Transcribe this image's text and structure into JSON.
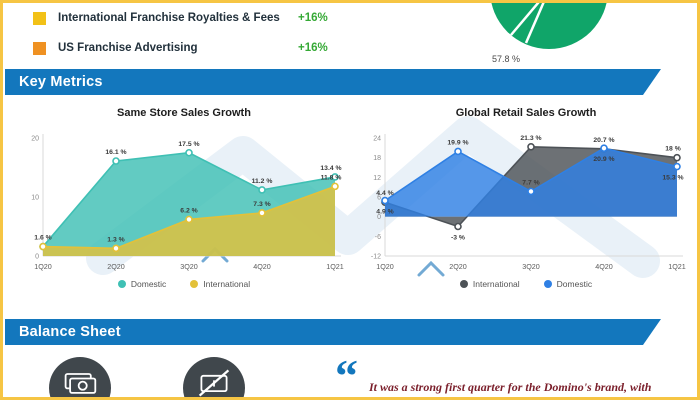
{
  "colors": {
    "accent_blue": "#1377bd",
    "positive_green": "#35a935",
    "donut_green": "#10a569",
    "quote_maroon": "#7b1f2b",
    "border_yellow": "#f6c544",
    "icon_circle_gray": "#40474c"
  },
  "revenue_legend": {
    "items": [
      {
        "label": "International Franchise Royalties & Fees",
        "change": "+16%",
        "color": "#f2c117"
      },
      {
        "label": "US Franchise Advertising",
        "change": "+16%",
        "color": "#ef9122"
      }
    ]
  },
  "donut": {
    "visible_label": "57.8 %"
  },
  "section_headers": {
    "key_metrics": "Key Metrics",
    "balance_sheet": "Balance Sheet"
  },
  "chart_data": [
    {
      "type": "area",
      "title": "Same Store Sales Growth",
      "categories": [
        "1Q20",
        "2Q20",
        "3Q20",
        "4Q20",
        "1Q21"
      ],
      "ylim": [
        0,
        20
      ],
      "yticks": [
        0,
        10,
        20
      ],
      "legend_position": "bottom",
      "series": [
        {
          "name": "Domestic",
          "color": "#3fc0b4",
          "values": [
            1.6,
            16.1,
            17.5,
            11.2,
            13.4
          ],
          "labels": [
            "1.6 %",
            "16.1 %",
            "17.5 %",
            "11.2 %",
            "13.4 %"
          ]
        },
        {
          "name": "International",
          "color": "#e3c139",
          "values": [
            1.6,
            1.3,
            6.2,
            7.3,
            11.8
          ],
          "labels": [
            "",
            "1.3 %",
            "6.2 %",
            "7.3 %",
            "11.8 %"
          ]
        }
      ]
    },
    {
      "type": "area",
      "title": "Global Retail Sales Growth",
      "categories": [
        "1Q20",
        "2Q20",
        "3Q20",
        "4Q20",
        "1Q21"
      ],
      "ylim": [
        -12,
        24
      ],
      "yticks": [
        -12,
        -6,
        0,
        6,
        12,
        18,
        24
      ],
      "legend_position": "bottom",
      "series": [
        {
          "name": "International",
          "color": "#4d5257",
          "values": [
            4.4,
            -3.0,
            21.3,
            20.7,
            18.0
          ],
          "labels": [
            "4.4 %",
            "-3 %",
            "21.3 %",
            "20.7 %",
            "18 %"
          ]
        },
        {
          "name": "Domestic",
          "color": "#2f80e4",
          "values": [
            4.9,
            19.9,
            7.7,
            20.9,
            15.3
          ],
          "labels": [
            "4.9 %",
            "19.9 %",
            "7.7 %",
            "20.9 %",
            "15.3 %"
          ]
        }
      ]
    }
  ],
  "quote": {
    "mark": "“",
    "text": "It was a strong first quarter for the Domino's brand, with"
  }
}
